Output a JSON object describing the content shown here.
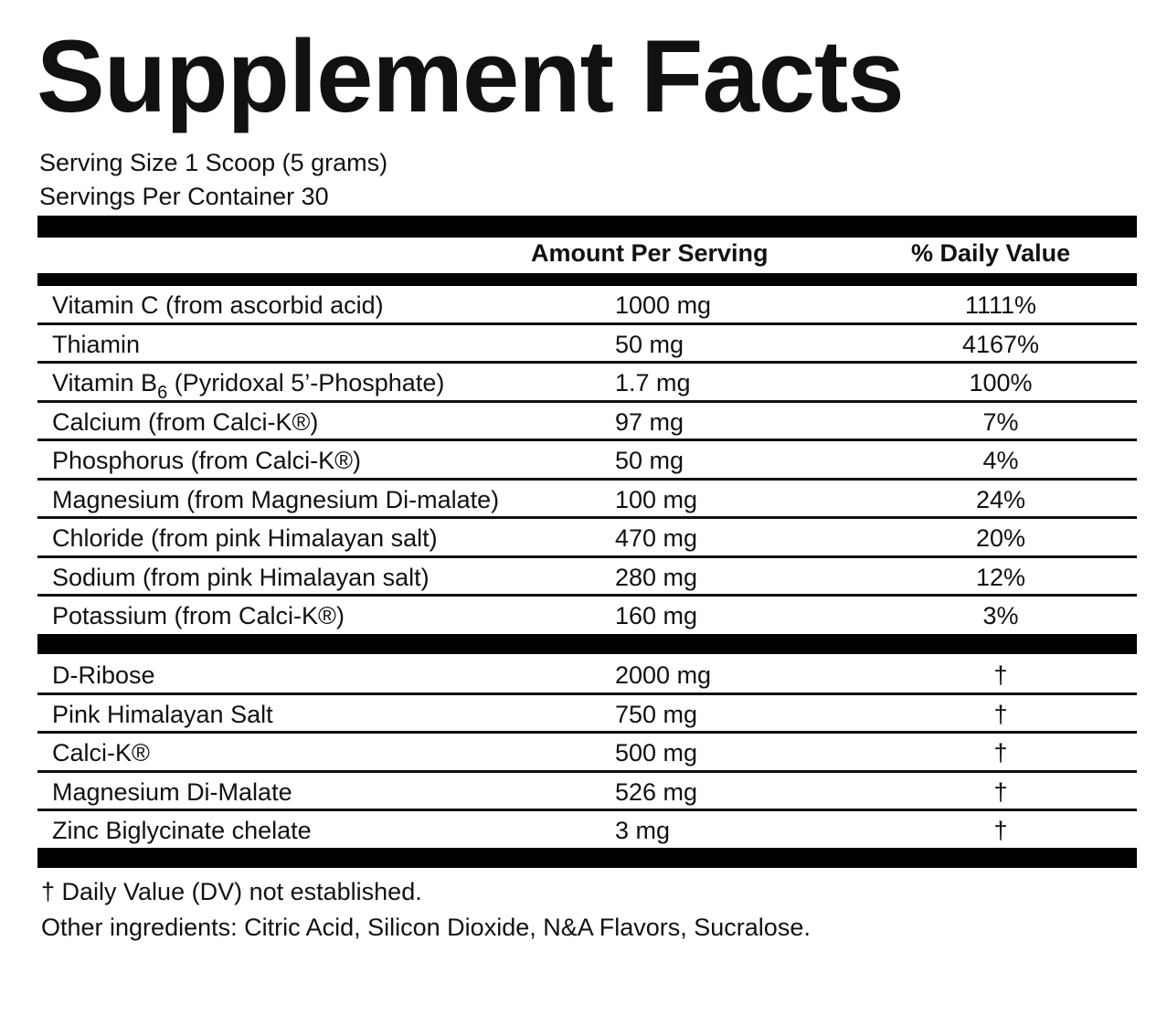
{
  "title": "Supplement Facts",
  "serving_size": "Serving Size 1 Scoop (5 grams)",
  "servings_per_container": "Servings Per Container 30",
  "header": {
    "amount": "Amount Per Serving",
    "dv": "% Daily Value"
  },
  "group1": [
    {
      "name": "Vitamin C (from ascorbid acid)",
      "amount": "1000 mg",
      "dv": "1111%"
    },
    {
      "name": "Thiamin",
      "amount": "50 mg",
      "dv": "4167%"
    },
    {
      "name": "Vitamin B",
      "name_sub": "6",
      "name_rest": " (Pyridoxal 5’-Phosphate)",
      "amount": "1.7 mg",
      "dv": "100%"
    },
    {
      "name": "Calcium (from Calci-K®)",
      "amount": "97 mg",
      "dv": "7%"
    },
    {
      "name": "Phosphorus (from Calci-K®)",
      "amount": "50 mg",
      "dv": "4%"
    },
    {
      "name": "Magnesium (from Magnesium Di-malate)",
      "amount": "100 mg",
      "dv": "24%"
    },
    {
      "name": "Chloride (from pink Himalayan salt)",
      "amount": "470 mg",
      "dv": "20%"
    },
    {
      "name": "Sodium (from pink Himalayan salt)",
      "amount": "280 mg",
      "dv": "12%"
    },
    {
      "name": "Potassium (from Calci-K®)",
      "amount": "160 mg",
      "dv": "3%"
    }
  ],
  "group2": [
    {
      "name": "D-Ribose",
      "amount": "2000 mg",
      "dv": "†"
    },
    {
      "name": "Pink Himalayan Salt",
      "amount": "750 mg",
      "dv": "†"
    },
    {
      "name": "Calci-K®",
      "amount": "500 mg",
      "dv": "†"
    },
    {
      "name": "Magnesium Di-Malate",
      "amount": "526 mg",
      "dv": "†"
    },
    {
      "name": "Zinc Biglycinate chelate",
      "amount": "3 mg",
      "dv": "†"
    }
  ],
  "footnote": "† Daily Value (DV) not established.",
  "other_ingredients": "Other ingredients: Citric Acid, Silicon Dioxide, N&A Flavors, Sucralose."
}
